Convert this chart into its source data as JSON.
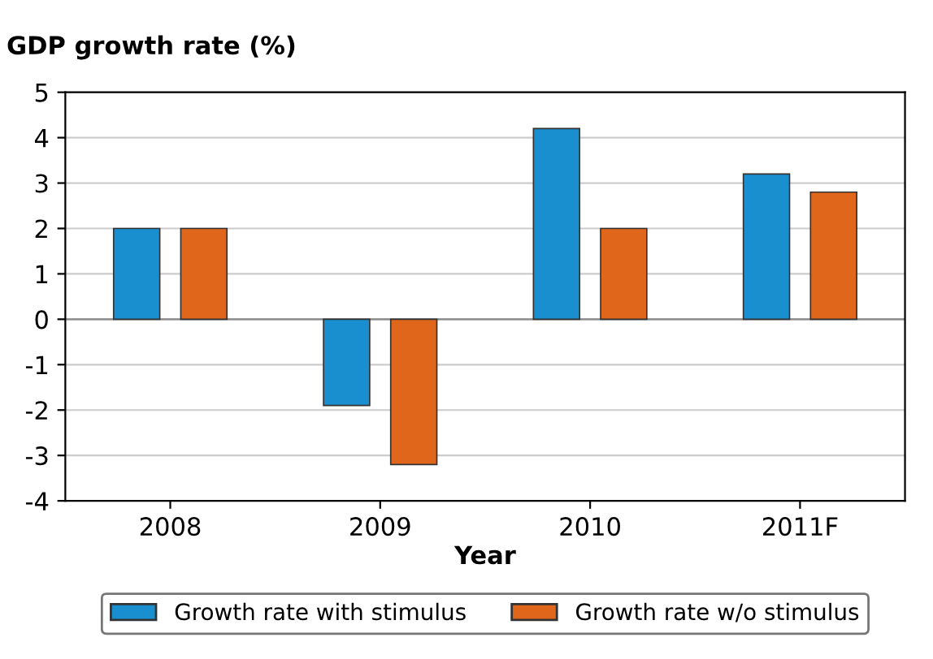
{
  "chart_data": {
    "type": "bar",
    "ylabel": "GDP growth rate (%)",
    "xlabel": "Year",
    "categories": [
      "2008",
      "2009",
      "2010",
      "2011F"
    ],
    "series": [
      {
        "name": "Growth rate with stimulus",
        "color": "#1a8fd0",
        "values": [
          2.0,
          -1.9,
          4.2,
          3.2
        ]
      },
      {
        "name": "Growth rate w/o stimulus",
        "color": "#e0661c",
        "values": [
          2.0,
          -3.2,
          2.0,
          2.8
        ]
      }
    ],
    "ylim": [
      -4,
      5
    ],
    "yticks": [
      -4,
      -3,
      -2,
      -1,
      0,
      1,
      2,
      3,
      4,
      5
    ],
    "grid": "y",
    "legend": "bottom"
  }
}
